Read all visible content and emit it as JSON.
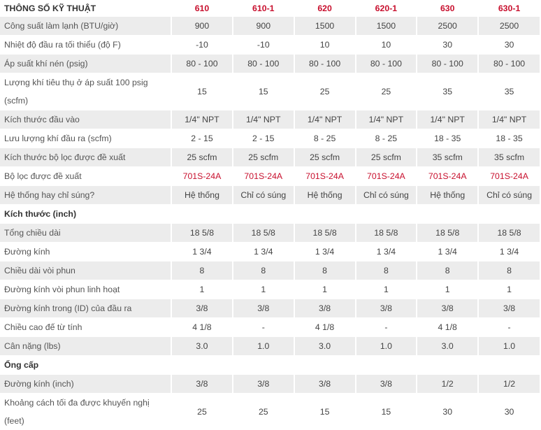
{
  "header": {
    "title": "THÔNG SỐ KỸ THUẬT",
    "models": [
      "610",
      "610-1",
      "620",
      "620-1",
      "630",
      "630-1"
    ]
  },
  "rows": [
    {
      "label": "Công suất làm lạnh (BTU/giờ)",
      "values": [
        "900",
        "900",
        "1500",
        "1500",
        "2500",
        "2500"
      ]
    },
    {
      "label": "Nhiệt độ đầu ra tối thiểu (độ F)",
      "values": [
        "-10",
        "-10",
        "10",
        "10",
        "30",
        "30"
      ]
    },
    {
      "label": "Áp suất khí nén (psig)",
      "values": [
        "80 - 100",
        "80 - 100",
        "80 - 100",
        "80 - 100",
        "80 - 100",
        "80 - 100"
      ]
    },
    {
      "label": "Lượng khí tiêu thụ ở áp suất 100 psig (scfm)",
      "values": [
        "15",
        "15",
        "25",
        "25",
        "35",
        "35"
      ]
    },
    {
      "label": "Kích thước đầu vào",
      "values": [
        "1/4\" NPT",
        "1/4\" NPT",
        "1/4\" NPT",
        "1/4\" NPT",
        "1/4\" NPT",
        "1/4\" NPT"
      ]
    },
    {
      "label": "Lưu lượng khí đầu ra (scfm)",
      "values": [
        "2 - 15",
        "2 - 15",
        "8 - 25",
        "8 - 25",
        "18 - 35",
        "18 - 35"
      ]
    },
    {
      "label": "Kích thước bộ lọc được đề xuất",
      "values": [
        "25 scfm",
        "25 scfm",
        "25 scfm",
        "25 scfm",
        "35 scfm",
        "35 scfm"
      ]
    },
    {
      "label": "Bộ lọc được đề xuất",
      "values": [
        "701S-24A",
        "701S-24A",
        "701S-24A",
        "701S-24A",
        "701S-24A",
        "701S-24A"
      ]
    },
    {
      "label": "Hệ thống hay chỉ súng?",
      "values": [
        "Hệ thống",
        "Chỉ có súng",
        "Hệ thống",
        "Chỉ có súng",
        "Hệ thống",
        "Chỉ có súng"
      ]
    }
  ],
  "section_dimensions": {
    "title": "Kích thước (inch)",
    "rows": [
      {
        "label": "Tổng chiều dài",
        "values": [
          "18 5/8",
          "18 5/8",
          "18 5/8",
          "18 5/8",
          "18 5/8",
          "18 5/8"
        ]
      },
      {
        "label": "Đường kính",
        "values": [
          "1 3/4",
          "1 3/4",
          "1 3/4",
          "1 3/4",
          "1 3/4",
          "1 3/4"
        ]
      },
      {
        "label": "Chiều dài vòi phun",
        "values": [
          "8",
          "8",
          "8",
          "8",
          "8",
          "8"
        ]
      },
      {
        "label": "Đường kính vòi phun linh hoạt",
        "values": [
          "1",
          "1",
          "1",
          "1",
          "1",
          "1"
        ]
      },
      {
        "label": "Đường kính trong (ID) của đầu ra",
        "values": [
          "3/8",
          "3/8",
          "3/8",
          "3/8",
          "3/8",
          "3/8"
        ]
      },
      {
        "label": "Chiều cao đế từ tính",
        "values": [
          "4 1/8",
          "-",
          "4 1/8",
          "-",
          "4 1/8",
          "-"
        ]
      },
      {
        "label": "Cân nặng (lbs)",
        "values": [
          "3.0",
          "1.0",
          "3.0",
          "1.0",
          "3.0",
          "1.0"
        ]
      }
    ]
  },
  "section_pipe": {
    "title": "Ống cấp",
    "rows": [
      {
        "label": "Đường kính (inch)",
        "values": [
          "3/8",
          "3/8",
          "3/8",
          "3/8",
          "1/2",
          "1/2"
        ]
      },
      {
        "label": "Khoảng cách tối đa được khuyến nghị (feet)",
        "values": [
          "25",
          "25",
          "15",
          "15",
          "30",
          "30"
        ]
      }
    ]
  },
  "colors": {
    "accent": "#c8102e",
    "row_shade": "#ececec",
    "text": "#444444"
  }
}
